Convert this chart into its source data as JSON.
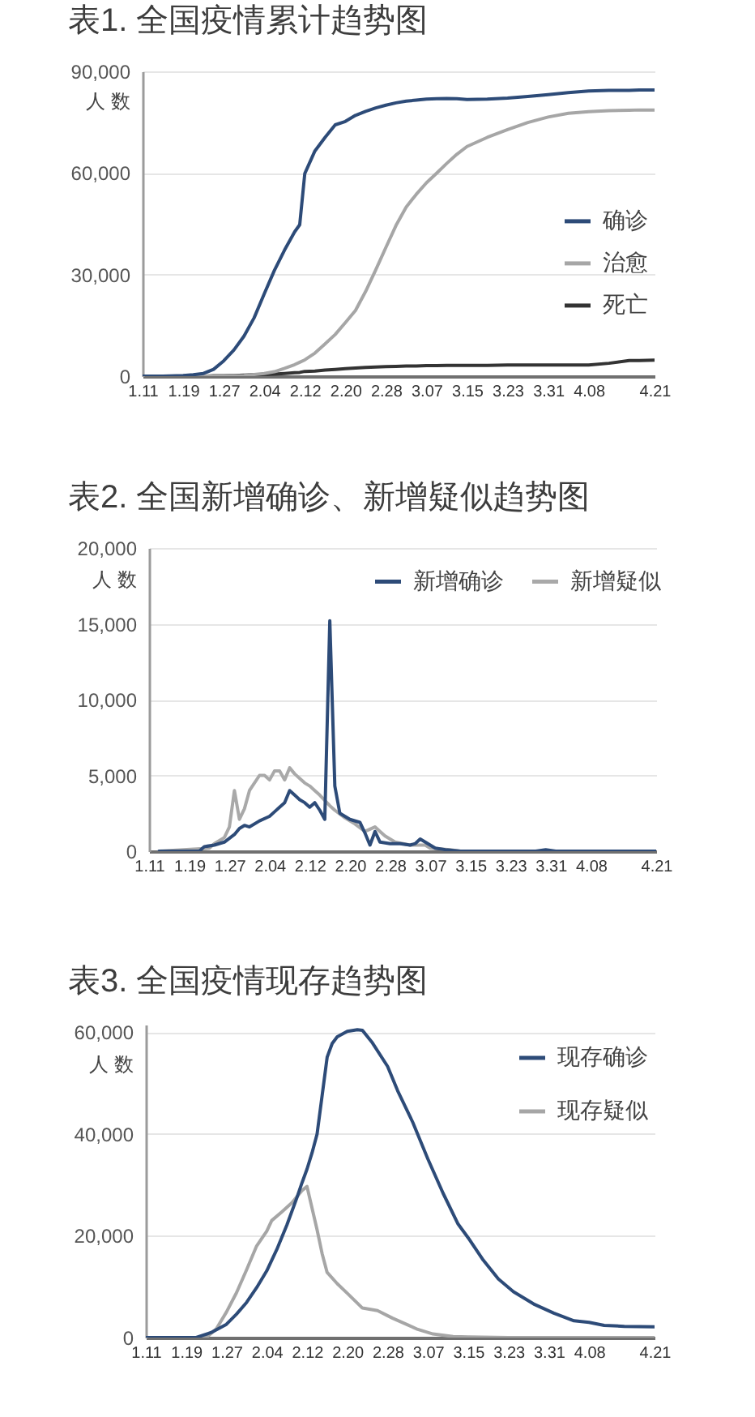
{
  "chart_data": [
    {
      "type": "line",
      "title": "表1. 全国疫情累计趋势图",
      "ylabel": "人 数",
      "x": [
        "--01-11",
        "--01-15",
        "--01-19",
        "--01-21",
        "--01-23",
        "--01-25",
        "--01-27",
        "--01-29",
        "--01-31",
        "--02-02",
        "--02-04",
        "--02-06",
        "--02-08",
        "--02-10",
        "--02-11",
        "--02-12",
        "--02-14",
        "--02-16",
        "--02-18",
        "--02-20",
        "--02-22",
        "--02-24",
        "--02-26",
        "--02-28",
        "--03-01",
        "--03-03",
        "--03-05",
        "--03-07",
        "--03-09",
        "--03-11",
        "--03-13",
        "--03-15",
        "--03-19",
        "--03-23",
        "--03-27",
        "--03-31",
        "--04-04",
        "--04-08",
        "--04-12",
        "--04-16",
        "--04-18",
        "--04-21"
      ],
      "series": [
        {
          "name": "确诊",
          "color": "#2d4b78",
          "values": [
            0,
            0,
            200,
            400,
            800,
            2000,
            4500,
            7700,
            11800,
            17200,
            24300,
            31200,
            37200,
            42600,
            44700,
            59800,
            66500,
            70500,
            74200,
            75200,
            77000,
            78200,
            79200,
            80000,
            80700,
            81200,
            81500,
            81800,
            81900,
            82000,
            81900,
            81700,
            81800,
            82100,
            82600,
            83100,
            83700,
            84200,
            84400,
            84400,
            84500,
            84500
          ]
        },
        {
          "name": "治愈",
          "color": "#a6a6a6",
          "values": [
            0,
            0,
            0,
            0,
            0,
            0,
            0,
            100,
            200,
            500,
            800,
            1300,
            2300,
            3400,
            4100,
            4800,
            6800,
            9500,
            12300,
            15800,
            19400,
            25000,
            31400,
            38000,
            44500,
            49900,
            53700,
            57100,
            59900,
            62800,
            65500,
            67800,
            70500,
            72800,
            74900,
            76500,
            77600,
            78100,
            78400,
            78500,
            78600,
            78600
          ]
        },
        {
          "name": "死亡",
          "color": "#333333",
          "values": [
            0,
            0,
            0,
            0,
            0,
            100,
            100,
            200,
            300,
            400,
            500,
            600,
            800,
            1000,
            1100,
            1400,
            1500,
            1800,
            2000,
            2200,
            2400,
            2600,
            2700,
            2800,
            2900,
            3000,
            3000,
            3100,
            3100,
            3200,
            3200,
            3200,
            3200,
            3300,
            3300,
            3300,
            3300,
            3300,
            3800,
            4600,
            4600,
            4700
          ]
        }
      ],
      "xlim": [
        "--01-11",
        "--04-21"
      ],
      "xticks": [
        {
          "value": "--01-11",
          "label": "1.11"
        },
        {
          "value": "--01-19",
          "label": "1.19"
        },
        {
          "value": "--01-27",
          "label": "1.27"
        },
        {
          "value": "--02-04",
          "label": "2.04"
        },
        {
          "value": "--02-12",
          "label": "2.12"
        },
        {
          "value": "--02-20",
          "label": "2.20"
        },
        {
          "value": "--02-28",
          "label": "2.28"
        },
        {
          "value": "--03-07",
          "label": "3.07"
        },
        {
          "value": "--03-15",
          "label": "3.15"
        },
        {
          "value": "--03-23",
          "label": "3.23"
        },
        {
          "value": "--03-31",
          "label": "3.31"
        },
        {
          "value": "--04-08",
          "label": "4.08"
        },
        {
          "value": "--04-21",
          "label": "4.21"
        }
      ],
      "ylim": [
        0,
        90000
      ],
      "yticks": [
        {
          "value": 0,
          "label": "0"
        },
        {
          "value": 30000,
          "label": "30,000"
        },
        {
          "value": 60000,
          "label": "60,000"
        },
        {
          "value": 90000,
          "label": "90,000"
        }
      ],
      "grid": "y",
      "legend": "right"
    },
    {
      "type": "line",
      "title": "表2. 全国新增确诊、新增疑似趋势图",
      "ylabel": "人 数",
      "series": [
        {
          "name": "新增确诊",
          "color": "#2d4b78",
          "x": [
            "--01-13",
            "--01-21",
            "--01-22",
            "--01-24",
            "--01-26",
            "--01-28",
            "--01-29",
            "--01-30",
            "--01-31",
            "--02-02",
            "--02-04",
            "--02-05",
            "--02-06",
            "--02-07",
            "--02-08",
            "--02-09",
            "--02-10",
            "--02-11",
            "--02-12",
            "--02-13",
            "--02-14",
            "--02-15",
            "--02-16",
            "--02-17",
            "--02-18",
            "--02-20",
            "--02-22",
            "--02-23",
            "--02-24",
            "--02-25",
            "--02-26",
            "--02-28",
            "--03-01",
            "--03-03",
            "--03-04",
            "--03-05",
            "--03-06",
            "--03-08",
            "--03-10",
            "--03-13",
            "--03-28",
            "--03-30",
            "--04-01",
            "--04-21"
          ],
          "values": [
            0,
            0,
            300,
            400,
            600,
            1100,
            1500,
            1700,
            1600,
            2000,
            2300,
            2600,
            2900,
            3200,
            4000,
            3700,
            3400,
            3200,
            2900,
            3200,
            2700,
            2100,
            15200,
            4300,
            2500,
            2100,
            1900,
            1200,
            400,
            1300,
            600,
            500,
            500,
            400,
            500,
            800,
            600,
            200,
            100,
            0,
            0,
            100,
            0,
            0
          ]
        },
        {
          "name": "新增疑似",
          "color": "#a9a9a9",
          "x": [
            "--01-13",
            "--01-23",
            "--01-24",
            "--01-26",
            "--01-27",
            "--01-28",
            "--01-29",
            "--01-30",
            "--01-31",
            "--02-02",
            "--02-03",
            "--02-04",
            "--02-05",
            "--02-06",
            "--02-07",
            "--02-08",
            "--02-09",
            "--02-10",
            "--02-11",
            "--02-12",
            "--02-13",
            "--02-14",
            "--02-16",
            "--02-17",
            "--02-19",
            "--02-21",
            "--02-23",
            "--02-25",
            "--02-26",
            "--02-27",
            "--02-29",
            "--03-03",
            "--03-05",
            "--03-06",
            "--03-07",
            "--03-11",
            "--03-13",
            "--04-21"
          ],
          "values": [
            0,
            200,
            500,
            900,
            1600,
            4000,
            2100,
            2800,
            4000,
            5000,
            5000,
            4700,
            5300,
            5300,
            4700,
            5500,
            5100,
            4800,
            4500,
            4300,
            4000,
            3700,
            3000,
            2700,
            2200,
            1800,
            1300,
            1600,
            1300,
            1000,
            600,
            400,
            400,
            400,
            200,
            100,
            0,
            0
          ]
        }
      ],
      "xlim": [
        "--01-11",
        "--04-21"
      ],
      "xticks": [
        {
          "value": "--01-11",
          "label": "1.11"
        },
        {
          "value": "--01-19",
          "label": "1.19"
        },
        {
          "value": "--01-27",
          "label": "1.27"
        },
        {
          "value": "--02-04",
          "label": "2.04"
        },
        {
          "value": "--02-12",
          "label": "2.12"
        },
        {
          "value": "--02-20",
          "label": "2.20"
        },
        {
          "value": "--02-28",
          "label": "2.28"
        },
        {
          "value": "--03-07",
          "label": "3.07"
        },
        {
          "value": "--03-15",
          "label": "3.15"
        },
        {
          "value": "--03-23",
          "label": "3.23"
        },
        {
          "value": "--03-31",
          "label": "3.31"
        },
        {
          "value": "--04-08",
          "label": "4.08"
        },
        {
          "value": "--04-21",
          "label": "4.21"
        }
      ],
      "ylim": [
        0,
        20000
      ],
      "yticks": [
        {
          "value": 0,
          "label": "0"
        },
        {
          "value": 5000,
          "label": "5,000"
        },
        {
          "value": 10000,
          "label": "10,000"
        },
        {
          "value": 15000,
          "label": "15,000"
        },
        {
          "value": 20000,
          "label": "20,000"
        }
      ],
      "grid": "y",
      "legend": "top right"
    },
    {
      "type": "line",
      "title": "表3. 全国疫情现存趋势图",
      "ylabel": "人 数",
      "series": [
        {
          "name": "现存确诊",
          "color": "#2d4b78",
          "x": [
            "--01-11",
            "--01-21",
            "--01-24",
            "--01-27",
            "--01-29",
            "--01-31",
            "--02-02",
            "--02-04",
            "--02-06",
            "--02-08",
            "--02-10",
            "--02-11",
            "--02-12",
            "--02-13",
            "--02-14",
            "--02-16",
            "--02-17",
            "--02-18",
            "--02-20",
            "--02-22",
            "--02-23",
            "--02-25",
            "--02-28",
            "--03-01",
            "--03-04",
            "--03-07",
            "--03-10",
            "--03-13",
            "--03-15",
            "--03-18",
            "--03-21",
            "--03-24",
            "--03-28",
            "--04-01",
            "--04-05",
            "--04-08",
            "--04-11",
            "--04-15",
            "--04-21"
          ],
          "values": [
            0,
            0,
            1000,
            2600,
            4600,
            6900,
            9800,
            13100,
            17300,
            22100,
            27500,
            30400,
            33100,
            36300,
            40000,
            55100,
            57800,
            59100,
            60200,
            60500,
            60400,
            57900,
            53300,
            48500,
            42300,
            35100,
            28400,
            22300,
            19600,
            15200,
            11500,
            9000,
            6600,
            4800,
            3300,
            3000,
            2400,
            2200,
            2100
          ]
        },
        {
          "name": "现存疑似",
          "color": "#a6a6a6",
          "x": [
            "--01-11",
            "--01-23",
            "--01-25",
            "--01-27",
            "--01-29",
            "--01-31",
            "--02-02",
            "--02-04",
            "--02-05",
            "--02-07",
            "--02-09",
            "--02-11",
            "--02-12",
            "--02-14",
            "--02-15",
            "--02-16",
            "--02-18",
            "--02-20",
            "--02-23",
            "--02-26",
            "--02-29",
            "--03-03",
            "--03-05",
            "--03-08",
            "--03-12",
            "--03-15",
            "--03-23",
            "--04-21"
          ],
          "values": [
            0,
            0,
            1700,
            5000,
            8800,
            13300,
            18000,
            20900,
            23000,
            24700,
            26500,
            28900,
            29700,
            21200,
            16500,
            12800,
            10600,
            8700,
            5800,
            5300,
            3800,
            2500,
            1600,
            700,
            200,
            100,
            0,
            0
          ]
        }
      ],
      "xlim": [
        "--01-11",
        "--04-21"
      ],
      "xticks": [
        {
          "value": "--01-11",
          "label": "1.11"
        },
        {
          "value": "--01-19",
          "label": "1.19"
        },
        {
          "value": "--01-27",
          "label": "1.27"
        },
        {
          "value": "--02-04",
          "label": "2.04"
        },
        {
          "value": "--02-12",
          "label": "2.12"
        },
        {
          "value": "--02-20",
          "label": "2.20"
        },
        {
          "value": "--02-28",
          "label": "2.28"
        },
        {
          "value": "--03-07",
          "label": "3.07"
        },
        {
          "value": "--03-15",
          "label": "3.15"
        },
        {
          "value": "--03-23",
          "label": "3.23"
        },
        {
          "value": "--03-31",
          "label": "3.31"
        },
        {
          "value": "--04-08",
          "label": "4.08"
        },
        {
          "value": "--04-21",
          "label": "4.21"
        }
      ],
      "ylim": [
        0,
        61500
      ],
      "yticks": [
        {
          "value": 0,
          "label": "0"
        },
        {
          "value": 20000,
          "label": "20,000"
        },
        {
          "value": 40000,
          "label": "40,000"
        },
        {
          "value": 60000,
          "label": "60,000"
        }
      ],
      "grid": "y",
      "legend": "top right"
    }
  ]
}
